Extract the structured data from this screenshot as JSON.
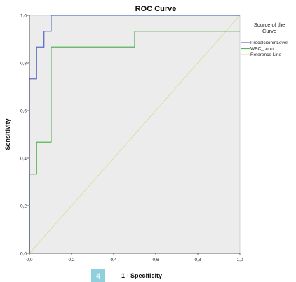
{
  "chart_data": {
    "type": "line",
    "title": "ROC Curve",
    "xlabel": "1 - Specificity",
    "ylabel": "Sensitivity",
    "xlim": [
      0,
      1
    ],
    "ylim": [
      0,
      1
    ],
    "x_ticks": [
      "0,0",
      "0,2",
      "0,4",
      "0,6",
      "0,8",
      "1,0"
    ],
    "y_ticks": [
      "0,0",
      "0,2",
      "0,4",
      "0,6",
      "0,8",
      "1,0"
    ],
    "grid": false,
    "legend_title": "Source of the Curve",
    "legend_title_lines": [
      "Source of the",
      "Curve"
    ],
    "legend_placement": "right",
    "series": [
      {
        "name": "ProcalcitoninLevel",
        "color": "#5b6fc8",
        "points": [
          [
            0,
            0
          ],
          [
            0,
            0.733
          ],
          [
            0.034,
            0.733
          ],
          [
            0.034,
            0.867
          ],
          [
            0.069,
            0.867
          ],
          [
            0.069,
            0.933
          ],
          [
            0.103,
            0.933
          ],
          [
            0.103,
            1.0
          ],
          [
            1.0,
            1.0
          ]
        ]
      },
      {
        "name": "WBC_count",
        "color": "#59b35a",
        "points": [
          [
            0,
            0
          ],
          [
            0,
            0.333
          ],
          [
            0.034,
            0.333
          ],
          [
            0.034,
            0.467
          ],
          [
            0.103,
            0.467
          ],
          [
            0.103,
            0.867
          ],
          [
            0.5,
            0.867
          ],
          [
            0.5,
            0.933
          ],
          [
            1.0,
            0.933
          ]
        ]
      },
      {
        "name": "Reference Line",
        "color": "#e0dba8",
        "points": [
          [
            0,
            0
          ],
          [
            1,
            1
          ]
        ]
      }
    ],
    "plot_background": "#ececec"
  },
  "badge": {
    "text": "4",
    "color": "#8fd0dc"
  }
}
